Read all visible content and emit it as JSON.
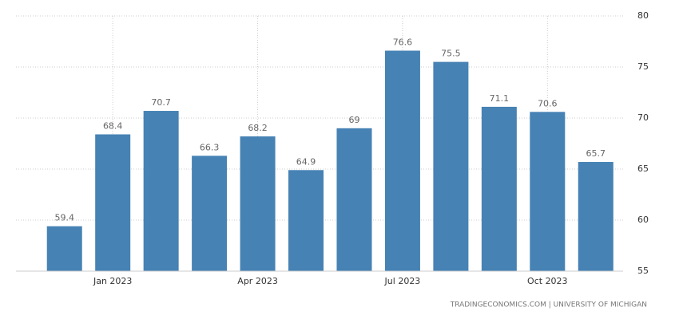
{
  "chart_data": {
    "type": "bar",
    "categories": [
      null,
      "Jan 2023",
      null,
      null,
      "Apr 2023",
      null,
      null,
      "Jul 2023",
      null,
      null,
      "Oct 2023",
      null
    ],
    "values": [
      59.4,
      68.4,
      70.7,
      66.3,
      68.2,
      64.9,
      69,
      76.6,
      75.5,
      71.1,
      70.6,
      65.7
    ],
    "color": "#4682b4",
    "ylim": [
      55,
      80
    ],
    "yticks": [
      55,
      60,
      65,
      70,
      75,
      80
    ],
    "grid": true,
    "source": "TRADINGECONOMICS.COM | UNIVERSITY OF MICHIGAN"
  }
}
